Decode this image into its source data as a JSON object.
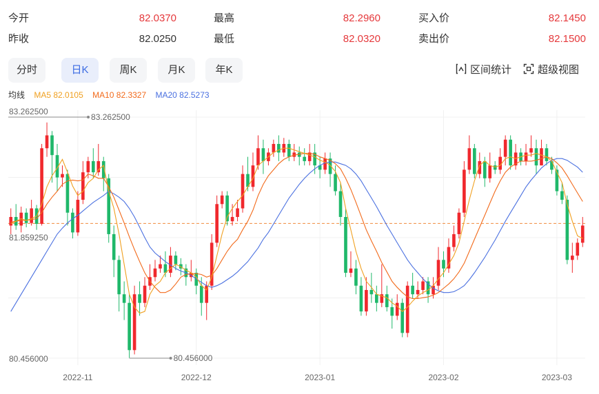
{
  "quote": {
    "open_label": "今开",
    "open_value": "82.0370",
    "high_label": "最高",
    "high_value": "82.2960",
    "bid_label": "买入价",
    "bid_value": "82.1450",
    "prev_label": "昨收",
    "prev_value": "82.0250",
    "low_label": "最低",
    "low_value": "82.0320",
    "ask_label": "卖出价",
    "ask_value": "82.1500"
  },
  "tabs": [
    {
      "label": "分时",
      "active": false
    },
    {
      "label": "日K",
      "active": true
    },
    {
      "label": "周K",
      "active": false
    },
    {
      "label": "月K",
      "active": false
    },
    {
      "label": "年K",
      "active": false
    }
  ],
  "tools": {
    "interval_stats": "区间统计",
    "super_view": "超级视图"
  },
  "ma": {
    "label": "均线",
    "ma5": "MA5 82.0105",
    "ma10": "MA10 82.3327",
    "ma20": "MA20 82.5273"
  },
  "colors": {
    "up": "#f0282d",
    "down": "#1fb86a",
    "ma5": "#f0a020",
    "ma10": "#f26a1b",
    "ma20": "#4a70e0",
    "ref": "#f08a3c",
    "up_text": "#e5383b",
    "active_tab": "#3b6be3"
  },
  "chart_data": {
    "type": "candlestick",
    "ylim": [
      80.456,
      83.2625
    ],
    "y_tick_labels": [
      "83.262500",
      "81.859250",
      "80.456000"
    ],
    "x_tick_labels": [
      "2022-11",
      "2022-12",
      "2023-01",
      "2023-02",
      "2023-03"
    ],
    "x_tick_index": [
      13,
      36,
      60,
      84,
      106
    ],
    "max_marker": {
      "label": "83.262500",
      "index": 7,
      "value": 83.2625
    },
    "min_marker": {
      "label": "80.456000",
      "index": 23,
      "value": 80.456
    },
    "reference_price": 82.025,
    "candles": [
      [
        82.0,
        82.1,
        82.2,
        81.9
      ],
      [
        82.1,
        82.0,
        82.25,
        81.95
      ],
      [
        82.0,
        82.15,
        82.22,
        81.92
      ],
      [
        82.15,
        82.03,
        82.2,
        81.98
      ],
      [
        82.03,
        82.2,
        82.3,
        82.0
      ],
      [
        82.2,
        82.02,
        82.24,
        81.95
      ],
      [
        82.02,
        82.9,
        82.95,
        82.0
      ],
      [
        82.9,
        83.05,
        83.2,
        82.8
      ],
      [
        83.05,
        82.82,
        83.1,
        82.5
      ],
      [
        82.82,
        82.56,
        82.95,
        82.4
      ],
      [
        82.56,
        82.6,
        82.7,
        82.45
      ],
      [
        82.6,
        82.15,
        82.65,
        82.0
      ],
      [
        82.15,
        81.92,
        82.2,
        81.85
      ],
      [
        81.92,
        82.3,
        82.4,
        81.88
      ],
      [
        82.3,
        82.62,
        82.75,
        82.25
      ],
      [
        82.62,
        82.75,
        82.8,
        82.55
      ],
      [
        82.75,
        82.62,
        82.9,
        82.55
      ],
      [
        82.62,
        82.75,
        82.95,
        82.58
      ],
      [
        82.75,
        82.55,
        82.8,
        82.4
      ],
      [
        82.55,
        81.9,
        82.6,
        81.8
      ],
      [
        81.9,
        81.6,
        82.0,
        81.4
      ],
      [
        81.6,
        81.2,
        81.65,
        81.0
      ],
      [
        81.2,
        81.1,
        81.35,
        80.9
      ],
      [
        81.1,
        80.55,
        81.2,
        80.46
      ],
      [
        80.55,
        81.2,
        81.3,
        80.5
      ],
      [
        81.2,
        81.1,
        81.35,
        80.95
      ],
      [
        81.1,
        81.3,
        81.4,
        81.05
      ],
      [
        81.3,
        81.4,
        81.55,
        81.25
      ],
      [
        81.4,
        81.5,
        81.6,
        81.35
      ],
      [
        81.5,
        81.55,
        81.65,
        81.45
      ],
      [
        81.55,
        81.45,
        81.7,
        81.4
      ],
      [
        81.45,
        81.65,
        81.75,
        81.4
      ],
      [
        81.65,
        81.55,
        81.7,
        81.48
      ],
      [
        81.55,
        81.5,
        81.62,
        81.42
      ],
      [
        81.5,
        81.4,
        81.55,
        81.3
      ],
      [
        81.4,
        81.45,
        81.6,
        81.35
      ],
      [
        81.45,
        81.3,
        81.5,
        81.2
      ],
      [
        81.3,
        81.1,
        81.4,
        80.95
      ],
      [
        81.1,
        81.3,
        81.35,
        80.9
      ],
      [
        81.3,
        81.8,
        81.9,
        81.25
      ],
      [
        81.8,
        82.25,
        82.35,
        81.75
      ],
      [
        82.25,
        82.35,
        82.4,
        82.2
      ],
      [
        82.35,
        82.05,
        82.4,
        82.0
      ],
      [
        82.05,
        82.1,
        82.25,
        82.0
      ],
      [
        82.1,
        82.2,
        82.3,
        82.05
      ],
      [
        82.2,
        82.6,
        82.7,
        82.15
      ],
      [
        82.6,
        82.45,
        82.8,
        82.4
      ],
      [
        82.45,
        82.7,
        82.85,
        82.4
      ],
      [
        82.7,
        82.9,
        83.05,
        82.65
      ],
      [
        82.9,
        82.75,
        83.0,
        82.6
      ],
      [
        82.75,
        82.85,
        82.9,
        82.7
      ],
      [
        82.85,
        82.95,
        83.0,
        82.8
      ],
      [
        82.95,
        82.85,
        83.05,
        82.75
      ],
      [
        82.85,
        82.95,
        83.02,
        82.8
      ],
      [
        82.95,
        82.8,
        83.0,
        82.75
      ],
      [
        82.8,
        82.85,
        82.95,
        82.75
      ],
      [
        82.85,
        82.8,
        82.92,
        82.7
      ],
      [
        82.8,
        82.75,
        82.9,
        82.7
      ],
      [
        82.75,
        82.85,
        82.95,
        82.7
      ],
      [
        82.85,
        82.7,
        82.95,
        82.6
      ],
      [
        82.7,
        82.65,
        82.8,
        82.55
      ],
      [
        82.65,
        82.78,
        82.85,
        82.6
      ],
      [
        82.78,
        82.6,
        82.85,
        82.45
      ],
      [
        82.6,
        82.4,
        82.7,
        82.35
      ],
      [
        82.4,
        82.1,
        82.5,
        82.0
      ],
      [
        82.1,
        81.45,
        82.2,
        81.4
      ],
      [
        81.45,
        81.5,
        81.7,
        81.4
      ],
      [
        81.5,
        81.3,
        81.6,
        81.2
      ],
      [
        81.3,
        81.0,
        81.4,
        80.95
      ],
      [
        81.0,
        81.25,
        81.4,
        80.95
      ],
      [
        81.25,
        81.2,
        81.45,
        81.1
      ],
      [
        81.2,
        81.1,
        81.3,
        81.0
      ],
      [
        81.1,
        81.2,
        81.55,
        81.05
      ],
      [
        81.2,
        81.05,
        81.3,
        81.0
      ],
      [
        81.05,
        80.95,
        81.15,
        80.8
      ],
      [
        80.95,
        81.1,
        81.2,
        80.9
      ],
      [
        81.1,
        80.75,
        81.15,
        80.7
      ],
      [
        80.75,
        81.3,
        81.35,
        80.7
      ],
      [
        81.3,
        81.2,
        81.45,
        81.15
      ],
      [
        81.2,
        81.25,
        81.35,
        81.15
      ],
      [
        81.25,
        81.35,
        81.4,
        81.2
      ],
      [
        81.35,
        81.2,
        81.4,
        81.1
      ],
      [
        81.2,
        81.3,
        81.4,
        81.15
      ],
      [
        81.3,
        81.6,
        81.75,
        81.25
      ],
      [
        81.6,
        81.5,
        81.7,
        81.4
      ],
      [
        81.5,
        81.75,
        81.85,
        81.45
      ],
      [
        81.75,
        81.9,
        82.0,
        81.7
      ],
      [
        81.9,
        82.15,
        82.2,
        81.85
      ],
      [
        82.15,
        82.65,
        82.75,
        82.1
      ],
      [
        82.65,
        82.9,
        83.05,
        82.6
      ],
      [
        82.9,
        82.6,
        82.95,
        82.55
      ],
      [
        82.6,
        82.75,
        82.85,
        82.55
      ],
      [
        82.75,
        82.55,
        82.8,
        82.45
      ],
      [
        82.55,
        82.7,
        82.85,
        82.5
      ],
      [
        82.7,
        82.65,
        82.75,
        82.6
      ],
      [
        82.65,
        82.8,
        82.9,
        82.6
      ],
      [
        82.8,
        83.0,
        83.05,
        82.7
      ],
      [
        83.0,
        82.7,
        83.05,
        82.65
      ],
      [
        82.7,
        82.85,
        82.95,
        82.65
      ],
      [
        82.85,
        82.75,
        82.9,
        82.7
      ],
      [
        82.75,
        82.85,
        82.95,
        82.7
      ],
      [
        82.85,
        82.9,
        83.05,
        82.8
      ],
      [
        82.9,
        82.7,
        83.0,
        82.6
      ],
      [
        82.7,
        82.9,
        83.0,
        82.7
      ],
      [
        82.9,
        82.75,
        82.95,
        82.7
      ],
      [
        82.75,
        82.65,
        82.8,
        82.6
      ],
      [
        82.65,
        82.4,
        82.7,
        82.35
      ],
      [
        82.4,
        82.3,
        82.5,
        82.25
      ],
      [
        82.3,
        81.6,
        82.35,
        81.55
      ],
      [
        81.6,
        81.65,
        81.8,
        81.45
      ],
      [
        81.65,
        81.8,
        81.85,
        81.6
      ],
      [
        81.8,
        82.0,
        82.1,
        81.75
      ]
    ],
    "ma5": [
      82.02,
      82.05,
      82.08,
      82.06,
      82.08,
      82.11,
      82.25,
      82.45,
      82.58,
      82.67,
      82.77,
      82.62,
      82.46,
      82.35,
      82.4,
      82.5,
      82.55,
      82.65,
      82.7,
      82.4,
      82.2,
      81.9,
      81.55,
      81.2,
      81.05,
      80.98,
      81.0,
      81.2,
      81.3,
      81.35,
      81.45,
      81.5,
      81.55,
      81.52,
      81.48,
      81.45,
      81.4,
      81.3,
      81.25,
      81.4,
      81.65,
      81.9,
      82.1,
      82.2,
      82.28,
      82.35,
      82.45,
      82.55,
      82.7,
      82.75,
      82.8,
      82.85,
      82.88,
      82.9,
      82.9,
      82.88,
      82.86,
      82.84,
      82.82,
      82.8,
      82.76,
      82.74,
      82.7,
      82.63,
      82.5,
      82.2,
      81.95,
      81.7,
      81.5,
      81.35,
      81.28,
      81.2,
      81.18,
      81.16,
      81.1,
      81.06,
      81.0,
      81.05,
      81.12,
      81.18,
      81.22,
      81.25,
      81.3,
      81.38,
      81.45,
      81.55,
      81.65,
      81.8,
      82.05,
      82.3,
      82.52,
      82.7,
      82.75,
      82.7,
      82.68,
      82.7,
      82.78,
      82.8,
      82.78,
      82.8,
      82.82,
      82.82,
      82.84,
      82.82,
      82.8,
      82.75,
      82.62,
      82.5,
      82.25,
      82.05,
      81.88,
      81.85
    ],
    "ma10": [
      82.04,
      82.05,
      82.06,
      82.06,
      82.07,
      82.08,
      82.15,
      82.25,
      82.33,
      82.4,
      82.48,
      82.52,
      82.53,
      82.52,
      82.53,
      82.6,
      82.58,
      82.55,
      82.55,
      82.45,
      82.33,
      82.18,
      82.03,
      81.87,
      81.72,
      81.58,
      81.45,
      81.35,
      81.28,
      81.22,
      81.22,
      81.25,
      81.32,
      81.4,
      81.43,
      81.44,
      81.44,
      81.43,
      81.4,
      81.42,
      81.5,
      81.6,
      81.7,
      81.78,
      81.84,
      81.95,
      82.05,
      82.18,
      82.35,
      82.48,
      82.58,
      82.65,
      82.72,
      82.77,
      82.8,
      82.82,
      82.83,
      82.84,
      82.84,
      82.83,
      82.8,
      82.78,
      82.76,
      82.72,
      82.66,
      82.55,
      82.42,
      82.27,
      82.11,
      81.95,
      81.82,
      81.7,
      81.57,
      81.46,
      81.35,
      81.28,
      81.22,
      81.17,
      81.15,
      81.15,
      81.16,
      81.17,
      81.19,
      81.22,
      81.27,
      81.32,
      81.38,
      81.46,
      81.56,
      81.7,
      81.84,
      81.98,
      82.12,
      82.26,
      82.4,
      82.52,
      82.62,
      82.68,
      82.72,
      82.75,
      82.75,
      82.75,
      82.76,
      82.78,
      82.8,
      82.78,
      82.73,
      82.67,
      82.58,
      82.48,
      82.38,
      82.28
    ],
    "ma20": [
      81.0,
      81.1,
      81.2,
      81.3,
      81.4,
      81.5,
      81.6,
      81.7,
      81.8,
      81.9,
      81.97,
      82.03,
      82.08,
      82.12,
      82.17,
      82.22,
      82.27,
      82.31,
      82.35,
      82.4,
      82.37,
      82.33,
      82.28,
      82.2,
      82.1,
      81.98,
      81.86,
      81.75,
      81.68,
      81.63,
      81.58,
      81.54,
      81.5,
      81.47,
      81.45,
      81.42,
      81.38,
      81.34,
      81.3,
      81.28,
      81.3,
      81.33,
      81.37,
      81.41,
      81.46,
      81.52,
      81.58,
      81.66,
      81.74,
      81.84,
      81.92,
      82.02,
      82.12,
      82.22,
      82.32,
      82.4,
      82.48,
      82.55,
      82.61,
      82.66,
      82.7,
      82.73,
      82.74,
      82.74,
      82.72,
      82.7,
      82.66,
      82.6,
      82.52,
      82.42,
      82.32,
      82.22,
      82.11,
      82.0,
      81.9,
      81.8,
      81.7,
      81.6,
      81.52,
      81.45,
      81.38,
      81.32,
      81.27,
      81.24,
      81.22,
      81.22,
      81.23,
      81.26,
      81.3,
      81.37,
      81.45,
      81.54,
      81.63,
      81.73,
      81.83,
      81.94,
      82.05,
      82.15,
      82.25,
      82.35,
      82.45,
      82.53,
      82.6,
      82.67,
      82.72,
      82.76,
      82.78,
      82.78,
      82.76,
      82.72,
      82.68,
      82.62
    ]
  }
}
